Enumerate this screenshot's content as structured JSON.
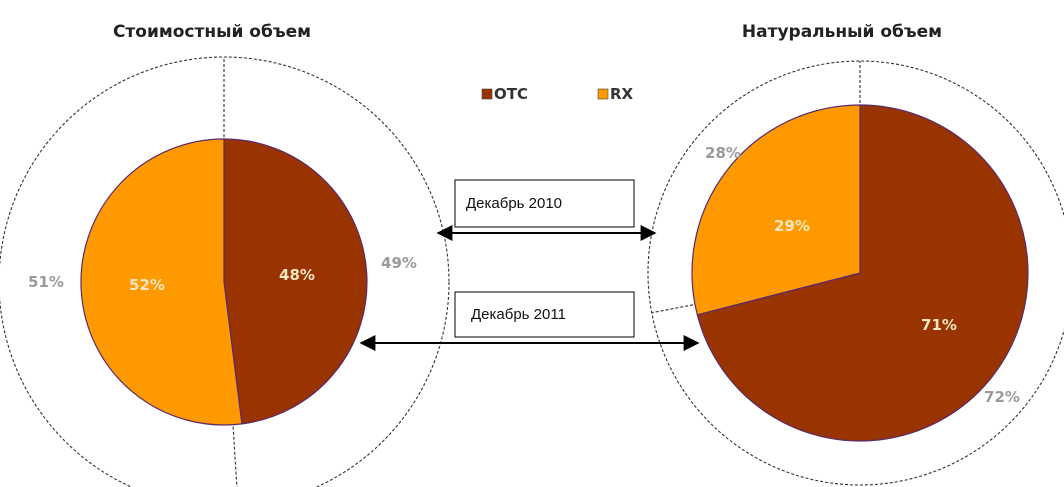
{
  "chart_data": [
    {
      "type": "pie",
      "chart_style": "nested-ring",
      "title": "Стоимостный объем",
      "start_angle": "12 o'clock, clockwise",
      "inner": {
        "period": "Декабрь 2011",
        "values": [
          48,
          52
        ],
        "labels": [
          "48%",
          "52%"
        ]
      },
      "outer": {
        "period": "Декабрь 2010",
        "values": [
          49,
          51
        ],
        "labels": [
          "49%",
          "51%"
        ]
      }
    },
    {
      "type": "pie",
      "chart_style": "nested-ring",
      "title": "Натуральный объем",
      "start_angle": "12 o'clock, clockwise",
      "inner": {
        "period": "Декабрь 2011",
        "values": [
          71,
          29
        ],
        "labels": [
          "71%",
          "29%"
        ]
      },
      "outer": {
        "period": "Декабрь 2010",
        "values": [
          72,
          28
        ],
        "labels": [
          "72%",
          "28%"
        ]
      }
    }
  ],
  "legend": {
    "placement": "top-center",
    "entries": [
      {
        "label": "OTC",
        "color": "#993300"
      },
      {
        "label": "RX",
        "color": "#ff9900"
      }
    ]
  },
  "callouts": [
    {
      "text": "Декабрь 2010",
      "points_to": "outer ring"
    },
    {
      "text": "Декабрь 2011",
      "points_to": "inner pie"
    }
  ],
  "colors": {
    "otc": "#993300",
    "rx": "#ff9900",
    "slice_border": "#5a2a6e",
    "outer_label": "#9a9a9a",
    "inner_label": "#f6e6c2"
  }
}
